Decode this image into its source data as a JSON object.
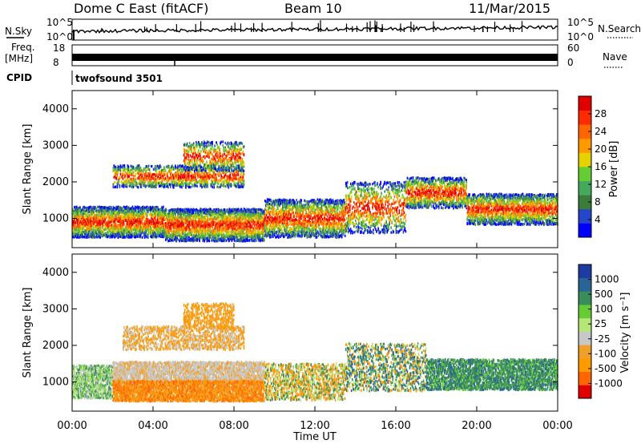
{
  "header": {
    "title": "Dome C East (fitACF)",
    "beam": "Beam 10",
    "date": "11/Mar/2015"
  },
  "top_panels": {
    "nsky_label": "N.Sky",
    "nsky_ticks": [
      "10^5",
      "10^0"
    ],
    "nsearch_label": "N.Search",
    "nsearch_ticks": [
      "10^5",
      "10^0"
    ],
    "freq_label_1": "Freq.",
    "freq_label_2": "[MHz]",
    "freq_ticks": [
      "18",
      "8"
    ],
    "nave_label": "Nave",
    "nave_ticks": [
      "60",
      "0"
    ],
    "cpid_label": "CPID",
    "cpid_value": "twofsound 3501"
  },
  "chart_data": [
    {
      "type": "heatmap",
      "name": "power",
      "ylabel": "Slant Range [km]",
      "xlabel": "",
      "y_ticks": [
        "1000",
        "2000",
        "3000",
        "4000"
      ],
      "ylim": [
        200,
        4500
      ],
      "colorbar_label": "Power [dB]",
      "colorbar_ticks": [
        "28",
        "24",
        "20",
        "16",
        "12",
        "8",
        "4"
      ],
      "colors": [
        "#0000ff",
        "#2546c8",
        "#3a7d3a",
        "#46a85a",
        "#66cc33",
        "#e6d200",
        "#ff9900",
        "#ff6600",
        "#ff2a00",
        "#e00000"
      ],
      "echo_bands": [
        {
          "start": 0.0,
          "end": 4.6,
          "center": 900,
          "spread": 420,
          "density": 0.9
        },
        {
          "start": 4.6,
          "end": 9.5,
          "center": 820,
          "spread": 440,
          "density": 0.9
        },
        {
          "start": 9.5,
          "end": 13.5,
          "center": 1000,
          "spread": 520,
          "density": 0.8
        },
        {
          "start": 13.5,
          "end": 16.5,
          "center": 1300,
          "spread": 700,
          "density": 0.55
        },
        {
          "start": 16.5,
          "end": 19.5,
          "center": 1700,
          "spread": 420,
          "density": 0.6
        },
        {
          "start": 19.5,
          "end": 24.0,
          "center": 1250,
          "spread": 420,
          "density": 0.75
        },
        {
          "start": 2.0,
          "end": 8.5,
          "center": 2150,
          "spread": 300,
          "density": 0.35
        },
        {
          "start": 5.5,
          "end": 8.5,
          "center": 2700,
          "spread": 400,
          "density": 0.35
        }
      ]
    },
    {
      "type": "heatmap",
      "name": "velocity",
      "ylabel": "Slant Range [km]",
      "xlabel": "Time UT",
      "x_ticks": [
        "00:00",
        "04:00",
        "08:00",
        "12:00",
        "16:00",
        "20:00",
        "00:00"
      ],
      "xlim": [
        0,
        24
      ],
      "y_ticks": [
        "1000",
        "2000",
        "3000",
        "4000"
      ],
      "ylim": [
        200,
        4500
      ],
      "colorbar_label": "Velocity [m s⁻¹]",
      "colorbar_ticks": [
        "1000",
        "500",
        "100",
        "25",
        "-25",
        "-100",
        "-500",
        "-1000"
      ],
      "colors": [
        "#e00000",
        "#ff6600",
        "#ff9900",
        "#f0a028",
        "#c8c8c8",
        "#b4e678",
        "#66cc33",
        "#3a8c5a",
        "#2a6496",
        "#1e3ca0"
      ],
      "echo_bands": [
        {
          "start": 0.0,
          "end": 2.0,
          "center": 1000,
          "spread": 450,
          "density": 0.85,
          "palette": [
            6,
            7,
            5,
            4
          ]
        },
        {
          "start": 2.0,
          "end": 9.5,
          "center": 1250,
          "spread": 300,
          "density": 0.7,
          "palette": [
            4,
            4,
            3
          ]
        },
        {
          "start": 2.0,
          "end": 9.5,
          "center": 750,
          "spread": 280,
          "density": 0.7,
          "palette": [
            2,
            3,
            1
          ]
        },
        {
          "start": 9.5,
          "end": 13.5,
          "center": 1000,
          "spread": 500,
          "density": 0.55,
          "palette": [
            2,
            3,
            7,
            5
          ]
        },
        {
          "start": 13.5,
          "end": 17.5,
          "center": 1400,
          "spread": 650,
          "density": 0.55,
          "palette": [
            7,
            5,
            2,
            8
          ]
        },
        {
          "start": 17.5,
          "end": 24.0,
          "center": 1200,
          "spread": 420,
          "density": 0.8,
          "palette": [
            7,
            7,
            6,
            8
          ]
        },
        {
          "start": 2.5,
          "end": 8.5,
          "center": 2200,
          "spread": 320,
          "density": 0.35,
          "palette": [
            2,
            3,
            4
          ]
        },
        {
          "start": 5.5,
          "end": 8.0,
          "center": 2800,
          "spread": 350,
          "density": 0.35,
          "palette": [
            2,
            3
          ]
        }
      ]
    }
  ]
}
